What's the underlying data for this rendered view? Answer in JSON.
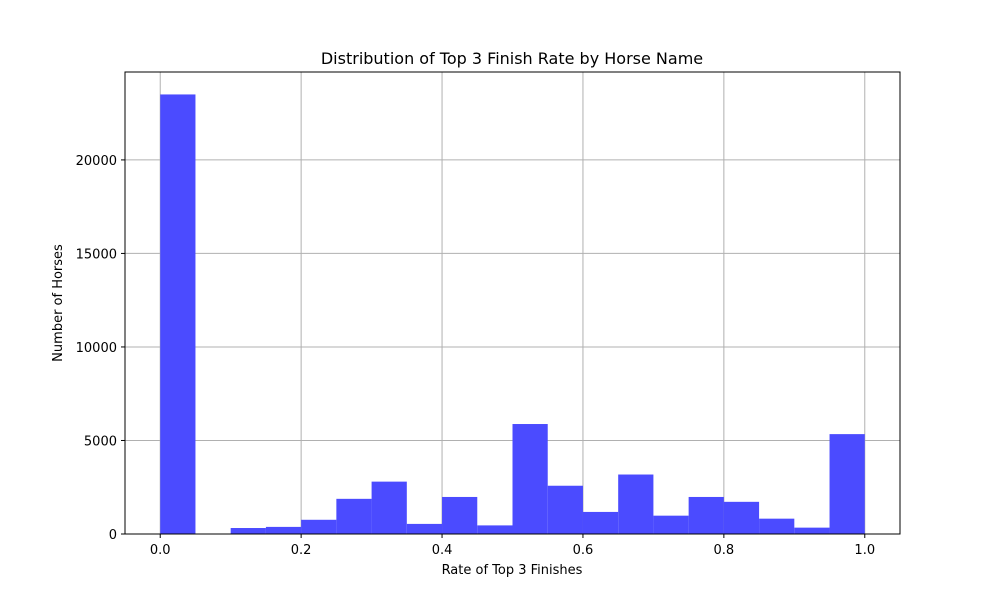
{
  "chart_data": {
    "type": "bar",
    "title": "Distribution of Top 3 Finish Rate by Horse Name",
    "xlabel": "Rate of Top 3 Finishes",
    "ylabel": "Number of Horses",
    "bins": [
      {
        "x0": 0.0,
        "x1": 0.05,
        "value": 23500
      },
      {
        "x0": 0.05,
        "x1": 0.1,
        "value": 0
      },
      {
        "x0": 0.1,
        "x1": 0.15,
        "value": 320
      },
      {
        "x0": 0.15,
        "x1": 0.2,
        "value": 380
      },
      {
        "x0": 0.2,
        "x1": 0.25,
        "value": 760
      },
      {
        "x0": 0.25,
        "x1": 0.3,
        "value": 1880
      },
      {
        "x0": 0.3,
        "x1": 0.35,
        "value": 2800
      },
      {
        "x0": 0.35,
        "x1": 0.4,
        "value": 540
      },
      {
        "x0": 0.4,
        "x1": 0.45,
        "value": 1980
      },
      {
        "x0": 0.45,
        "x1": 0.5,
        "value": 460
      },
      {
        "x0": 0.5,
        "x1": 0.55,
        "value": 5880
      },
      {
        "x0": 0.55,
        "x1": 0.6,
        "value": 2580
      },
      {
        "x0": 0.6,
        "x1": 0.65,
        "value": 1180
      },
      {
        "x0": 0.65,
        "x1": 0.7,
        "value": 3180
      },
      {
        "x0": 0.7,
        "x1": 0.75,
        "value": 980
      },
      {
        "x0": 0.75,
        "x1": 0.8,
        "value": 1980
      },
      {
        "x0": 0.8,
        "x1": 0.85,
        "value": 1720
      },
      {
        "x0": 0.85,
        "x1": 0.9,
        "value": 820
      },
      {
        "x0": 0.9,
        "x1": 0.95,
        "value": 340
      },
      {
        "x0": 0.95,
        "x1": 1.0,
        "value": 5340
      }
    ],
    "xlim": [
      -0.05,
      1.05
    ],
    "ylim": [
      0,
      24700
    ],
    "xticks": [
      {
        "value": 0.0,
        "label": "0.0"
      },
      {
        "value": 0.2,
        "label": "0.2"
      },
      {
        "value": 0.4,
        "label": "0.4"
      },
      {
        "value": 0.6,
        "label": "0.6"
      },
      {
        "value": 0.8,
        "label": "0.8"
      },
      {
        "value": 1.0,
        "label": "1.0"
      }
    ],
    "yticks": [
      {
        "value": 0,
        "label": "0"
      },
      {
        "value": 5000,
        "label": "5000"
      },
      {
        "value": 10000,
        "label": "10000"
      },
      {
        "value": 15000,
        "label": "15000"
      },
      {
        "value": 20000,
        "label": "20000"
      }
    ],
    "grid": true,
    "bar_color": "#4b4bff",
    "grid_color": "#b0b0b0"
  }
}
